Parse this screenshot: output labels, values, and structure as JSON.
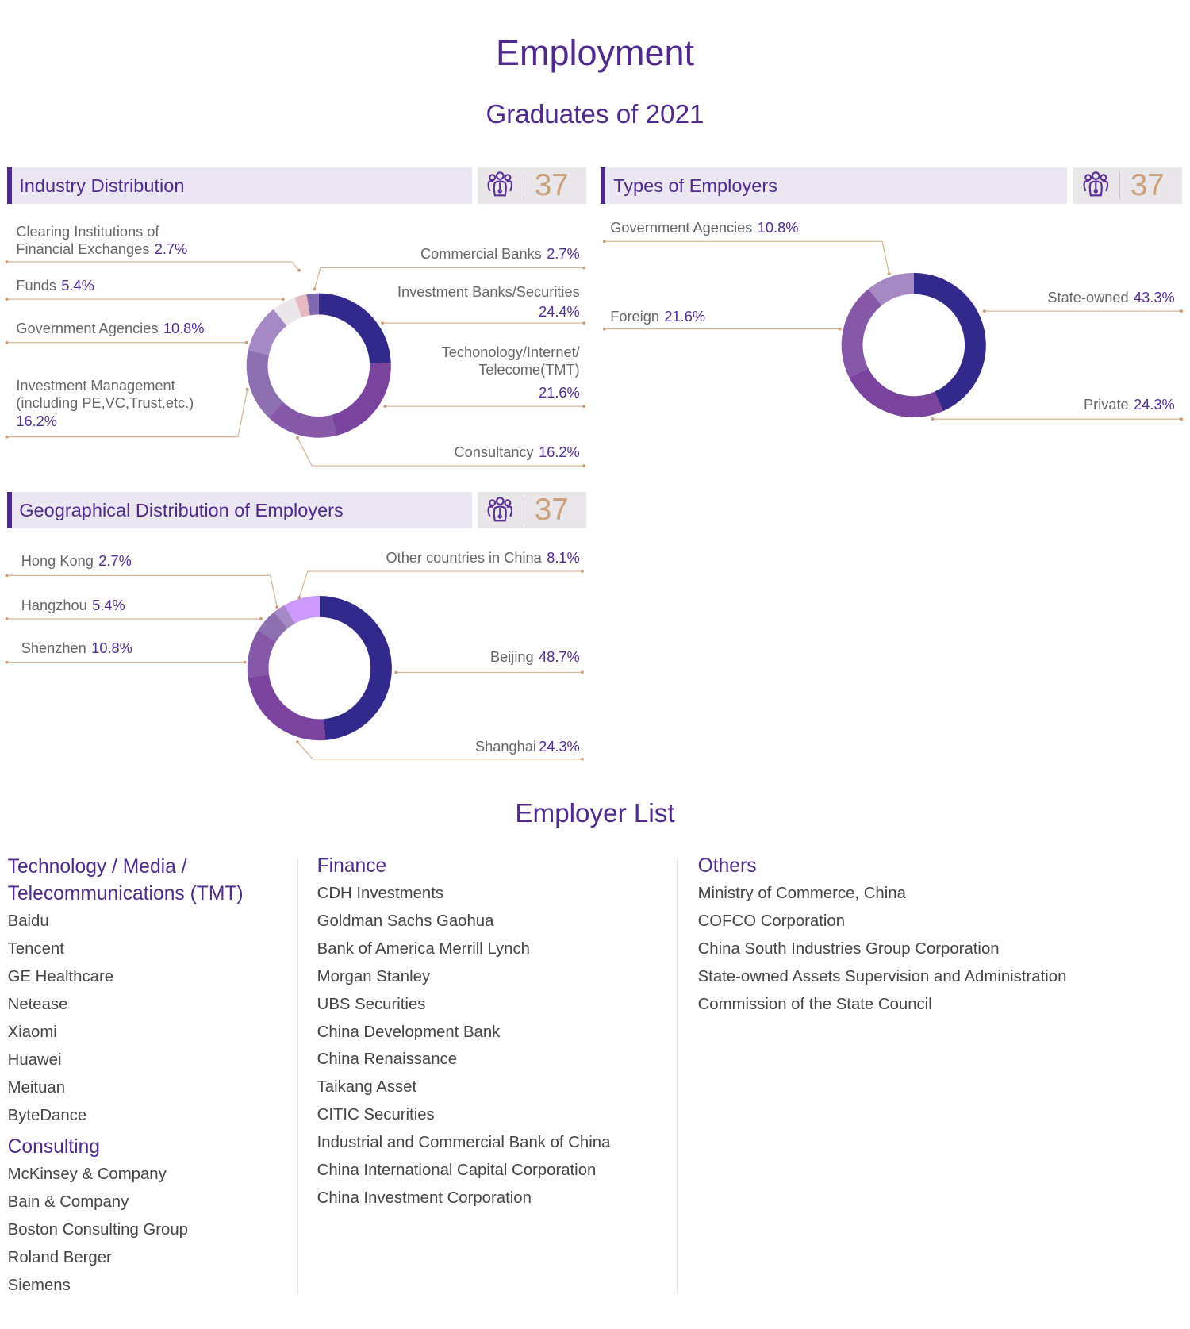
{
  "page": {
    "title": "Employment",
    "subtitle": "Graduates of 2021"
  },
  "colors": {
    "accent": "#4f2a8a",
    "count": "#c9a07a",
    "leader": "#d6b896"
  },
  "icons": {
    "count": "people-group-icon"
  },
  "chart_data": [
    {
      "type": "pie",
      "donut": true,
      "title": "Industry Distribution",
      "count": "37",
      "slices": [
        {
          "label": "Investment Banks/Securities",
          "pct_text": "24.4%",
          "value": 24.4,
          "color": "#33298a"
        },
        {
          "label": "Techonology/Internet/ Telecome(TMT)",
          "pct_text": "21.6%",
          "value": 21.6,
          "color": "#7a449e"
        },
        {
          "label": "Consultancy",
          "pct_text": "16.2%",
          "value": 16.2,
          "color": "#8659a8"
        },
        {
          "label": "Investment Management (including PE,VC,Trust,etc.)",
          "pct_text": "16.2%",
          "value": 16.2,
          "color": "#8c70b0"
        },
        {
          "label": "Government Agencies",
          "pct_text": "10.8%",
          "value": 10.8,
          "color": "#a688c4"
        },
        {
          "label": "Funds",
          "pct_text": "5.4%",
          "value": 5.4,
          "color": "#ebe6ea"
        },
        {
          "label": "Clearing Institutions of Financial Exchanges",
          "pct_text": "2.7%",
          "value": 2.7,
          "color": "#e6b8c0"
        },
        {
          "label": "Commercial Banks",
          "pct_text": "2.7%",
          "value": 2.7,
          "color": "#7f68ae"
        }
      ]
    },
    {
      "type": "pie",
      "donut": true,
      "title": "Types of Employers",
      "count": "37",
      "slices": [
        {
          "label": "State-owned",
          "pct_text": "43.3%",
          "value": 43.3,
          "color": "#33298a"
        },
        {
          "label": "Private",
          "pct_text": "24.3%",
          "value": 24.3,
          "color": "#7a449e"
        },
        {
          "label": "Foreign",
          "pct_text": "21.6%",
          "value": 21.6,
          "color": "#8659a8"
        },
        {
          "label": "Government Agencies",
          "pct_text": "10.8%",
          "value": 10.8,
          "color": "#a688c4"
        }
      ]
    },
    {
      "type": "pie",
      "donut": true,
      "title": "Geographical Distribution of Employers",
      "count": "37",
      "slices": [
        {
          "label": "Beijing",
          "pct_text": "48.7%",
          "value": 48.7,
          "color": "#33298a"
        },
        {
          "label": "Shanghai",
          "pct_text": "24.3%",
          "value": 24.3,
          "color": "#7a449e"
        },
        {
          "label": "Shenzhen",
          "pct_text": "10.8%",
          "value": 10.8,
          "color": "#8659a8"
        },
        {
          "label": "Hangzhou",
          "pct_text": "5.4%",
          "value": 5.4,
          "color": "#8c70b0"
        },
        {
          "label": "Hong Kong",
          "pct_text": "2.7%",
          "value": 2.7,
          "color": "#a688c4"
        },
        {
          "label": "Other countries in China",
          "pct_text": "8.1%",
          "value": 8.1,
          "color": "#cc99ff"
        }
      ]
    }
  ],
  "employer_list": {
    "title": "Employer List",
    "tmt": {
      "heading_1": "Technology / Media /",
      "heading_2": "Telecommunications (TMT)",
      "items": [
        "Baidu",
        "Tencent",
        "GE Healthcare",
        "Netease",
        "Xiaomi",
        "Huawei",
        "Meituan",
        "ByteDance"
      ]
    },
    "consulting": {
      "heading": "Consulting",
      "items": [
        "McKinsey & Company",
        "Bain & Company",
        "Boston Consulting Group",
        "Roland Berger",
        "Siemens"
      ]
    },
    "finance": {
      "heading": "Finance",
      "items": [
        "CDH Investments",
        "Goldman Sachs Gaohua",
        "Bank of America Merrill Lynch",
        "Morgan Stanley",
        "UBS Securities",
        "China Development Bank",
        "China Renaissance",
        "Taikang Asset",
        "CITIC Securities",
        "Industrial and Commercial Bank of China",
        "China International Capital Corporation",
        "China Investment Corporation"
      ]
    },
    "others": {
      "heading": "Others",
      "items": [
        "Ministry of Commerce, China",
        "COFCO Corporation",
        "China South Industries Group Corporation",
        "State-owned Assets Supervision and Administration",
        "Commission of the State Council"
      ]
    }
  }
}
